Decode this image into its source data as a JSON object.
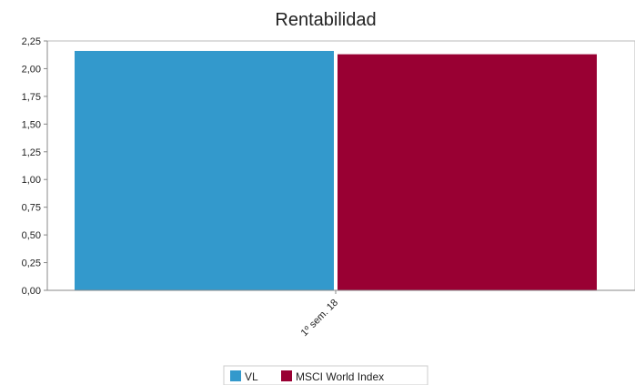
{
  "chart_data": {
    "type": "bar",
    "title": "Rentabilidad",
    "categories": [
      "1º sem. 18"
    ],
    "series": [
      {
        "name": "VL",
        "values": [
          2.16
        ],
        "color": "#3399cc"
      },
      {
        "name": "MSCI World Index",
        "values": [
          2.13
        ],
        "color": "#990033"
      }
    ],
    "ylim": [
      0,
      2.25
    ],
    "yticks": [
      "0,00",
      "0,25",
      "0,50",
      "0,75",
      "1,00",
      "1,25",
      "1,50",
      "1,75",
      "2,00",
      "2,25"
    ],
    "xlabel": "",
    "ylabel": "",
    "grid": false,
    "legend_position": "bottom"
  }
}
